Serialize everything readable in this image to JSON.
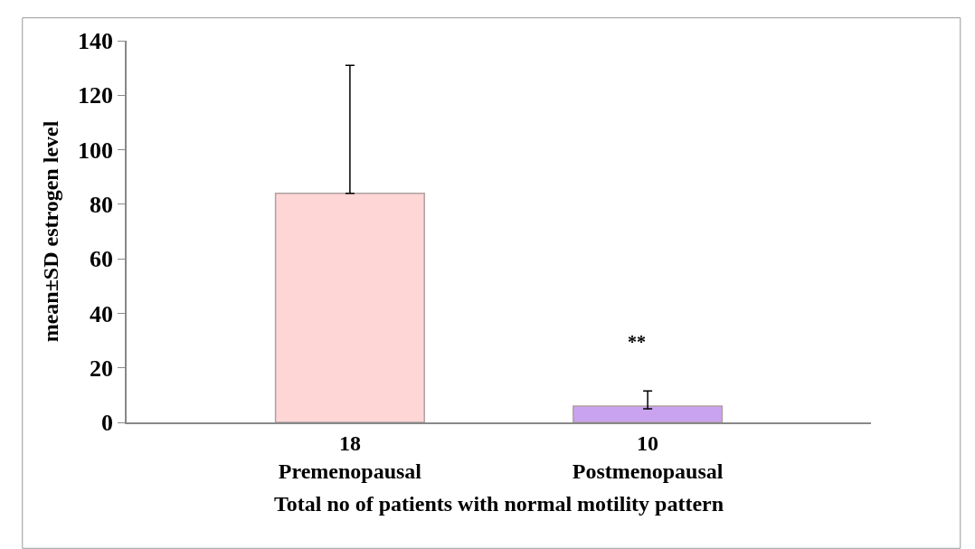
{
  "chart_data": {
    "type": "bar",
    "xlabel": "Total no of patients with normal motility pattern",
    "ylabel": "mean±SD estrogen level",
    "categories": [
      "18\nPremenopausal",
      "10\nPostmenopausal"
    ],
    "values": [
      84,
      6
    ],
    "colors": [
      "#ffd6d6",
      "#c9a3f0"
    ],
    "errors": [
      [
        84,
        131
      ],
      [
        5,
        11.5
      ]
    ],
    "ylim": [
      0,
      140
    ],
    "yticks": [
      0,
      20,
      40,
      60,
      80,
      100,
      120,
      140
    ],
    "annotations": [
      "**"
    ]
  }
}
